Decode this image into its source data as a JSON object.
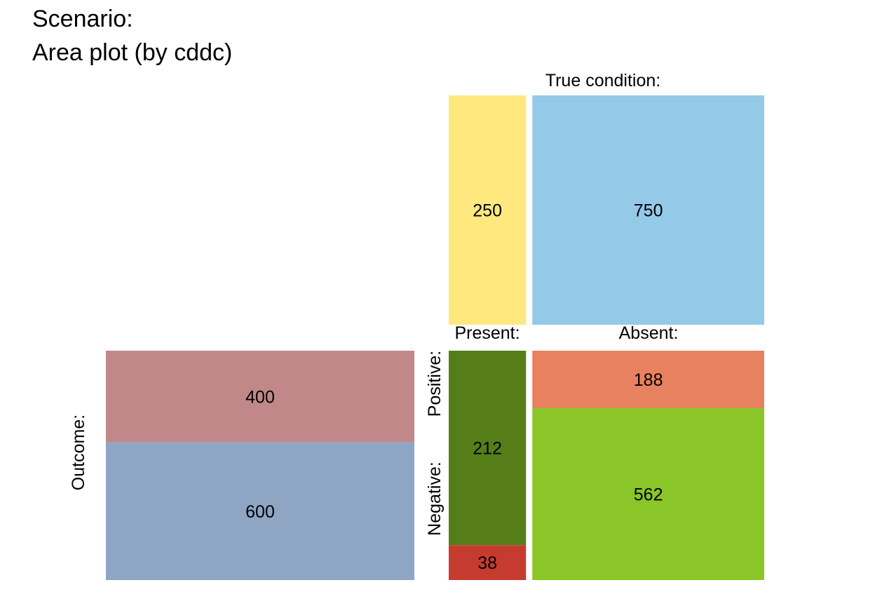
{
  "title": {
    "line1": "Scenario:",
    "line2": "Area plot (by cddc)"
  },
  "labels": {
    "condition": "True condition:",
    "present": "Present:",
    "absent": "Absent:",
    "outcome": "Outcome:",
    "positive": "Positive:",
    "negative": "Negative:"
  },
  "chart_data": {
    "type": "area",
    "condition": {
      "present": 250,
      "absent": 750
    },
    "outcome": {
      "positive": 400,
      "negative": 600
    },
    "cells": {
      "hi": 212,
      "mi": 38,
      "fa": 188,
      "cr": 562
    },
    "colors": {
      "present": "#FFE97F",
      "absent": "#94C9E8",
      "positive": "#C08888",
      "negative": "#8FA5C4",
      "hi": "#557E19",
      "mi": "#C63B30",
      "fa": "#E8815F",
      "cr": "#8AC627"
    }
  }
}
